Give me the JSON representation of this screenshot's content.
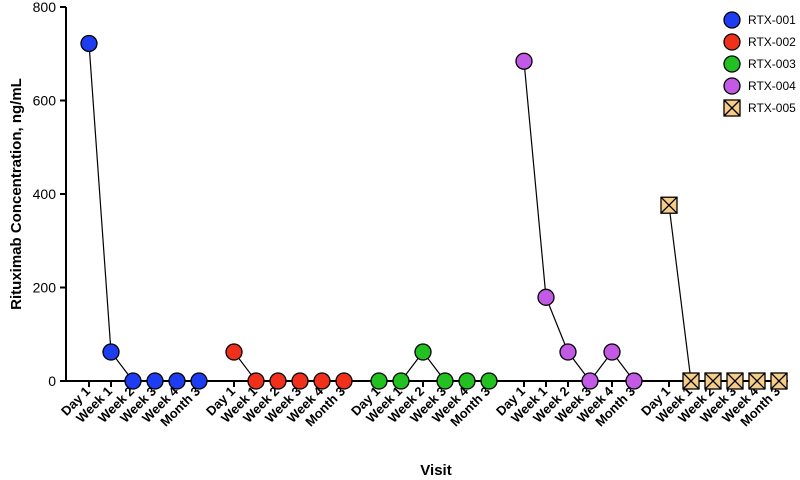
{
  "chart_data": {
    "type": "scatter",
    "title": "",
    "xlabel": "Visit",
    "ylabel": "Rituximab Concentration, ng/mL",
    "ylim": [
      0,
      800
    ],
    "yticks": [
      0,
      200,
      400,
      600,
      800
    ],
    "categories": [
      "Day 1",
      "Week 1",
      "Week 2",
      "Week 3",
      "Week 4",
      "Month 3"
    ],
    "series": [
      {
        "name": "RTX-001",
        "color": "#1f3df0",
        "marker": "circle",
        "values": [
          722,
          62,
          0,
          0,
          0,
          0
        ]
      },
      {
        "name": "RTX-002",
        "color": "#f0301a",
        "marker": "circle",
        "values": [
          62,
          0,
          0,
          0,
          0,
          0
        ]
      },
      {
        "name": "RTX-003",
        "color": "#22c020",
        "marker": "circle",
        "values": [
          0,
          0,
          62,
          0,
          0,
          0
        ]
      },
      {
        "name": "RTX-004",
        "color": "#c25ae6",
        "marker": "circle",
        "values": [
          684,
          179,
          62,
          0,
          62,
          0
        ]
      },
      {
        "name": "RTX-005",
        "color": "#f5cd88",
        "marker": "boxed-x",
        "values": [
          376,
          0,
          0,
          0,
          0,
          0
        ]
      }
    ]
  }
}
